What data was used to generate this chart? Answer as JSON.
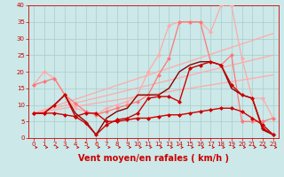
{
  "background_color": "#cce8e8",
  "grid_color": "#aacccc",
  "xlabel": "Vent moyen/en rafales ( km/h )",
  "xlabel_color": "#cc0000",
  "xlabel_fontsize": 7,
  "tick_color": "#cc0000",
  "xlim": [
    -0.5,
    23.5
  ],
  "ylim": [
    0,
    40
  ],
  "yticks": [
    0,
    5,
    10,
    15,
    20,
    25,
    30,
    35,
    40
  ],
  "xticks": [
    0,
    1,
    2,
    3,
    4,
    5,
    6,
    7,
    8,
    9,
    10,
    11,
    12,
    13,
    14,
    15,
    16,
    17,
    18,
    19,
    20,
    21,
    22,
    23
  ],
  "lines": [
    {
      "x": [
        0,
        23
      ],
      "y": [
        7.5,
        31.5
      ],
      "color": "#ffaaaa",
      "lw": 0.9,
      "marker": null,
      "ms": 0,
      "alpha": 1.0
    },
    {
      "x": [
        0,
        23
      ],
      "y": [
        7.5,
        25.0
      ],
      "color": "#ffaaaa",
      "lw": 0.9,
      "marker": null,
      "ms": 0,
      "alpha": 1.0
    },
    {
      "x": [
        0,
        23
      ],
      "y": [
        7.5,
        19.0
      ],
      "color": "#ffaaaa",
      "lw": 0.9,
      "marker": null,
      "ms": 0,
      "alpha": 1.0
    },
    {
      "x": [
        0,
        1,
        2,
        3,
        4,
        5,
        6,
        7,
        8,
        9,
        10,
        11,
        12,
        13,
        14,
        15,
        16,
        17,
        18,
        19,
        20,
        21,
        22,
        23
      ],
      "y": [
        16,
        20,
        18,
        13,
        9,
        8,
        7,
        9,
        10,
        11,
        13,
        20,
        25,
        34,
        35,
        35,
        35,
        32,
        40,
        40,
        24,
        12,
        12,
        6
      ],
      "color": "#ffaaaa",
      "lw": 0.9,
      "marker": "D",
      "ms": 2.0,
      "alpha": 1.0
    },
    {
      "x": [
        0,
        1,
        2,
        3,
        4,
        5,
        6,
        7,
        8,
        9,
        10,
        11,
        12,
        13,
        14,
        15,
        16,
        17,
        18,
        19,
        20,
        21,
        22,
        23
      ],
      "y": [
        16,
        17,
        18,
        13,
        10.5,
        8,
        7,
        8,
        9,
        10,
        11,
        13,
        19,
        24,
        35,
        35,
        35,
        23,
        22,
        25,
        5,
        5,
        5,
        6
      ],
      "color": "#ff7777",
      "lw": 0.9,
      "marker": "D",
      "ms": 2.0,
      "alpha": 1.0
    },
    {
      "x": [
        0,
        1,
        2,
        3,
        4,
        5,
        6,
        7,
        8,
        9,
        10,
        11,
        12,
        13,
        14,
        15,
        16,
        17,
        18,
        19,
        20,
        21,
        22,
        23
      ],
      "y": [
        7.5,
        7.5,
        10,
        13,
        7.5,
        5,
        1,
        6,
        8,
        9,
        13,
        13,
        13,
        15,
        20,
        22,
        23,
        23,
        22,
        15,
        13,
        12,
        2.5,
        1
      ],
      "color": "#880000",
      "lw": 1.0,
      "marker": null,
      "ms": 0,
      "alpha": 1.0
    },
    {
      "x": [
        0,
        1,
        2,
        3,
        4,
        5,
        6,
        7,
        8,
        9,
        10,
        11,
        12,
        13,
        14,
        15,
        16,
        17,
        18,
        19,
        20,
        21,
        22,
        23
      ],
      "y": [
        7.5,
        7.5,
        10,
        13,
        6.5,
        4.5,
        1,
        4,
        5.5,
        6,
        7.5,
        12,
        12.5,
        12.5,
        11,
        21,
        22,
        23,
        22,
        16,
        13,
        12,
        3,
        1
      ],
      "color": "#cc0000",
      "lw": 1.0,
      "marker": "D",
      "ms": 2.0,
      "alpha": 1.0
    },
    {
      "x": [
        0,
        1,
        2,
        3,
        4,
        5,
        6,
        7,
        8,
        9,
        10,
        11,
        12,
        13,
        14,
        15,
        16,
        17,
        18,
        19,
        20,
        21,
        22,
        23
      ],
      "y": [
        7.5,
        7.5,
        7.5,
        7,
        6.5,
        7.5,
        7.5,
        5,
        5,
        5.5,
        6,
        6,
        6.5,
        7,
        7,
        7.5,
        8,
        8.5,
        9,
        9,
        8,
        6,
        4,
        1
      ],
      "color": "#cc0000",
      "lw": 1.0,
      "marker": "D",
      "ms": 2.0,
      "alpha": 1.0
    }
  ],
  "arrow_color": "#cc0000"
}
